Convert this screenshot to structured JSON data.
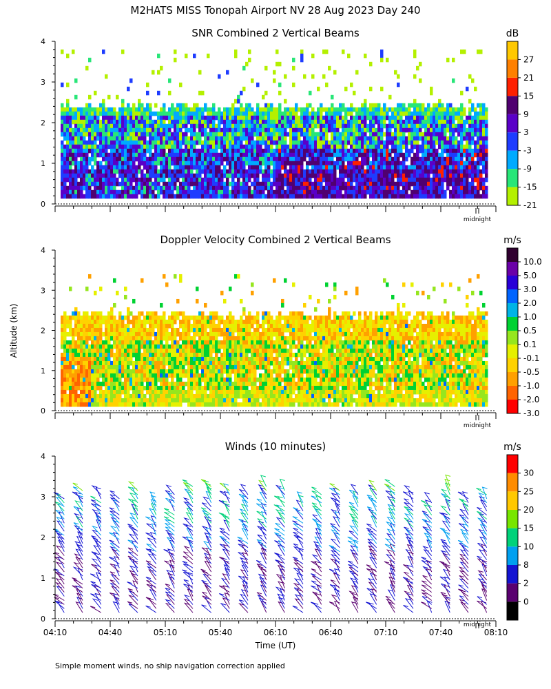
{
  "figure": {
    "title": "M2HATS MISS Tonopah Airport NV  28 Aug 2023 Day 240",
    "ylabel": "Altitude (km)",
    "xlabel": "Time (UT)",
    "footnote": "Simple moment winds, no ship navigation correction applied",
    "midnight_label": "midnight"
  },
  "chart_data": [
    {
      "type": "heatmap",
      "title": "SNR Combined 2 Vertical Beams",
      "units": "dB",
      "ylim": [
        0,
        4
      ],
      "yticks": [
        "0",
        "1",
        "2",
        "3",
        "4"
      ],
      "xlim_minutes": [
        0,
        240
      ],
      "data_top_km": 2.5,
      "sparse_top_km": 3.8,
      "colorbar": {
        "labels": [
          "27",
          "21",
          "15",
          "9",
          "3",
          "-3",
          "-9",
          "-15",
          "-21"
        ],
        "colors": [
          "#ffc800",
          "#ff8000",
          "#ff2000",
          "#500070",
          "#5a00c8",
          "#1e3cff",
          "#00aaff",
          "#28e678",
          "#b4f000"
        ]
      }
    },
    {
      "type": "heatmap",
      "title": "Doppler Velocity Combined 2 Vertical Beams",
      "units": "m/s",
      "ylim": [
        0,
        4
      ],
      "yticks": [
        "0",
        "1",
        "2",
        "3",
        "4"
      ],
      "xlim_minutes": [
        0,
        240
      ],
      "data_top_km": 2.5,
      "sparse_top_km": 3.4,
      "colorbar": {
        "labels": [
          "10.0",
          "5.0",
          "3.0",
          "2.0",
          "1.0",
          "0.5",
          "0.1",
          "-0.1",
          "-0.5",
          "-1.0",
          "-2.0",
          "-3.0"
        ],
        "colors": [
          "#300030",
          "#6a00a8",
          "#2800d8",
          "#0064ff",
          "#00b4e6",
          "#00d232",
          "#96e61e",
          "#e6f000",
          "#ffd200",
          "#ffa000",
          "#ff6400",
          "#ff0000"
        ]
      }
    },
    {
      "type": "wind_barbs",
      "title": "Winds (10 minutes)",
      "units": "m/s",
      "ylim": [
        0,
        4
      ],
      "yticks": [
        "0",
        "1",
        "2",
        "3",
        "4"
      ],
      "xlim_minutes": [
        0,
        240
      ],
      "xticks": [
        "04:10",
        "04:40",
        "05:10",
        "05:40",
        "06:10",
        "06:40",
        "07:10",
        "07:40",
        "08:10"
      ],
      "profile_interval_minutes": 10,
      "colorbar": {
        "labels": [
          "30",
          "25",
          "20",
          "15",
          "10",
          "8",
          "2",
          "0"
        ],
        "colors": [
          "#ff0000",
          "#ff8c00",
          "#ffc800",
          "#78e600",
          "#00d27a",
          "#00a0f0",
          "#1414d2",
          "#5a0070",
          "#000000"
        ]
      }
    }
  ]
}
